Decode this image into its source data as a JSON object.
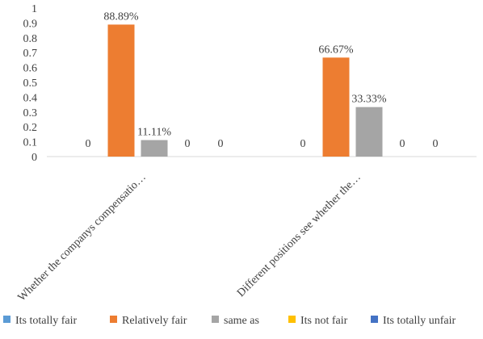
{
  "chart_data": {
    "type": "bar",
    "categories": [
      "Whether the companys compensatio…",
      "Different positions see whether the…"
    ],
    "series": [
      {
        "name": "Its totally fair",
        "color": "#5B9BD5",
        "values": [
          0,
          0
        ],
        "labels": [
          "0",
          "0"
        ]
      },
      {
        "name": "Relatively fair",
        "color": "#ED7D31",
        "values": [
          0.8889,
          0.6667
        ],
        "labels": [
          "88.89%",
          "66.67%"
        ]
      },
      {
        "name": "same as",
        "color": "#A5A5A5",
        "values": [
          0.1111,
          0.3333
        ],
        "labels": [
          "11.11%",
          "33.33%"
        ]
      },
      {
        "name": "Its not fair",
        "color": "#FFC000",
        "values": [
          0,
          0
        ],
        "labels": [
          "0",
          "0"
        ]
      },
      {
        "name": "Its totally unfair",
        "color": "#4472C4",
        "values": [
          0,
          0
        ],
        "labels": [
          "0",
          "0"
        ]
      }
    ],
    "yticks": [
      "0",
      "0.1",
      "0.2",
      "0.3",
      "0.4",
      "0.5",
      "0.6",
      "0.7",
      "0.8",
      "0.9",
      "1"
    ],
    "ylim": [
      0,
      1
    ],
    "legend_position": "bottom",
    "grid": false
  }
}
